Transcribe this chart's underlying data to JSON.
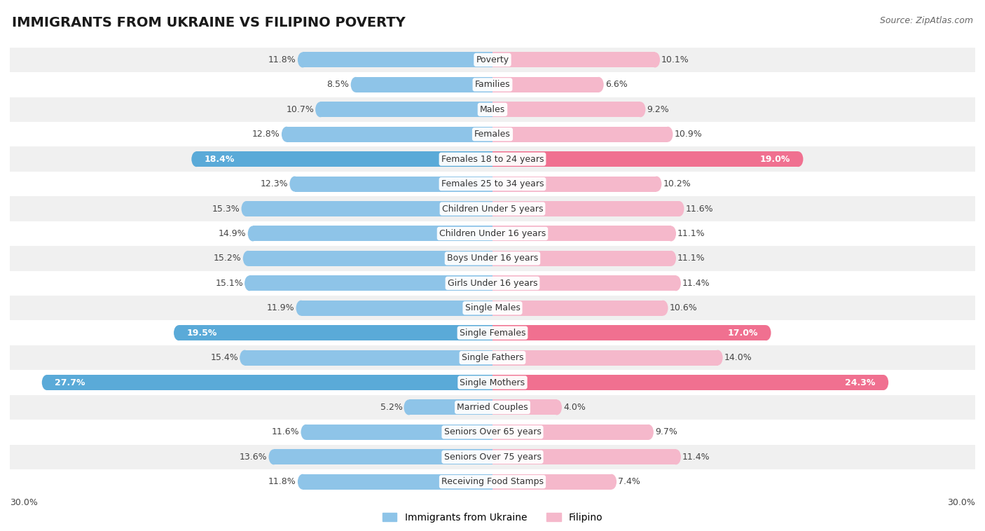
{
  "title": "IMMIGRANTS FROM UKRAINE VS FILIPINO POVERTY",
  "source": "Source: ZipAtlas.com",
  "categories": [
    "Poverty",
    "Families",
    "Males",
    "Females",
    "Females 18 to 24 years",
    "Females 25 to 34 years",
    "Children Under 5 years",
    "Children Under 16 years",
    "Boys Under 16 years",
    "Girls Under 16 years",
    "Single Males",
    "Single Females",
    "Single Fathers",
    "Single Mothers",
    "Married Couples",
    "Seniors Over 65 years",
    "Seniors Over 75 years",
    "Receiving Food Stamps"
  ],
  "ukraine_values": [
    11.8,
    8.5,
    10.7,
    12.8,
    18.4,
    12.3,
    15.3,
    14.9,
    15.2,
    15.1,
    11.9,
    19.5,
    15.4,
    27.7,
    5.2,
    11.6,
    13.6,
    11.8
  ],
  "filipino_values": [
    10.1,
    6.6,
    9.2,
    10.9,
    19.0,
    10.2,
    11.6,
    11.1,
    11.1,
    11.4,
    10.6,
    17.0,
    14.0,
    24.3,
    4.0,
    9.7,
    11.4,
    7.4
  ],
  "ukraine_color": "#8ec4e8",
  "filipino_color": "#f5b8cb",
  "ukraine_highlight_color": "#5aaad8",
  "filipino_highlight_color": "#f07090",
  "highlight_rows": [
    4,
    11,
    13
  ],
  "background_color": "#ffffff",
  "row_even_color": "#f0f0f0",
  "row_odd_color": "#ffffff",
  "bar_height": 0.62,
  "max_value": 30.0,
  "legend_ukraine": "Immigrants from Ukraine",
  "legend_filipino": "Filipino",
  "title_fontsize": 14,
  "source_fontsize": 9,
  "value_fontsize": 9,
  "category_fontsize": 9
}
